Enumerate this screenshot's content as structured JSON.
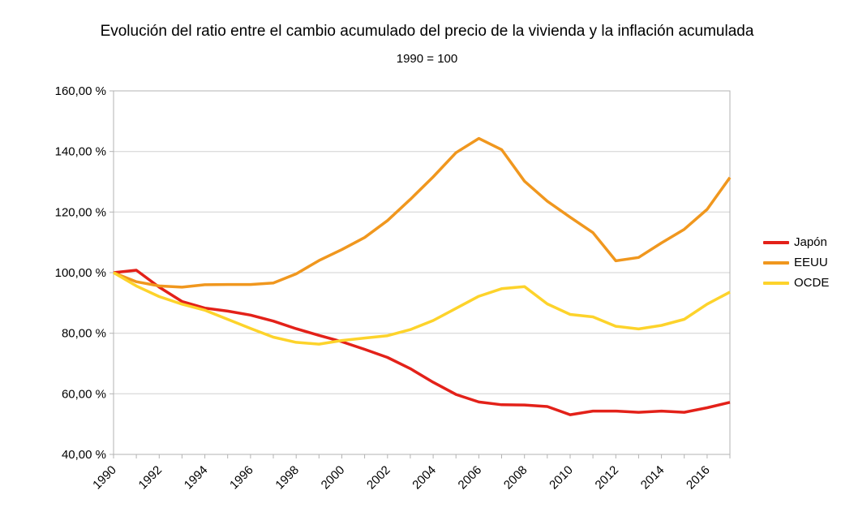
{
  "chart_data": {
    "type": "line",
    "title": "Evolución del ratio entre el cambio acumulado del precio de la vivienda y la inflación acumulada",
    "subtitle": "1990 = 100",
    "x": [
      1990,
      1991,
      1992,
      1993,
      1994,
      1995,
      1996,
      1997,
      1998,
      1999,
      2000,
      2001,
      2002,
      2003,
      2004,
      2005,
      2006,
      2007,
      2008,
      2009,
      2010,
      2011,
      2012,
      2013,
      2014,
      2015,
      2016,
      2017
    ],
    "x_tick_labels": [
      "1990",
      "1992",
      "1994",
      "1996",
      "1998",
      "2000",
      "2002",
      "2004",
      "2006",
      "2008",
      "2010",
      "2012",
      "2014",
      "2016"
    ],
    "y_ticks": [
      160,
      140,
      120,
      100,
      80,
      60,
      40
    ],
    "y_tick_labels": [
      "160,00 %",
      "140,00 %",
      "120,00 %",
      "100,00 %",
      "80,00 %",
      "60,00 %",
      "40,00 %"
    ],
    "ylim": [
      40,
      160
    ],
    "grid": true,
    "legend_position": "right",
    "axis_color": "#b3b3b3",
    "grid_color": "#d0d0d0",
    "text_color": "#000000",
    "series": [
      {
        "name": "Japón",
        "color": "#e32119",
        "values": [
          100,
          100.8,
          95.2,
          90.5,
          88.3,
          87.3,
          86.0,
          84.0,
          81.5,
          79.3,
          77.2,
          74.7,
          72.0,
          68.3,
          63.8,
          59.8,
          57.3,
          56.4,
          56.3,
          55.8,
          53.1,
          54.3,
          54.3,
          53.9,
          54.3,
          53.9,
          55.4,
          57.2
        ]
      },
      {
        "name": "EEUU",
        "color": "#f0971e",
        "values": [
          100,
          97.0,
          95.6,
          95.2,
          96.0,
          96.1,
          96.1,
          96.6,
          99.6,
          104.0,
          107.6,
          111.6,
          117.2,
          124.2,
          131.6,
          139.6,
          144.3,
          140.6,
          130.2,
          123.6,
          118.3,
          113.2,
          103.9,
          105.0,
          109.8,
          114.3,
          120.9,
          131.4
        ]
      },
      {
        "name": "OCDE",
        "color": "#fdd32b",
        "values": [
          100,
          95.6,
          92.1,
          89.6,
          87.6,
          84.6,
          81.6,
          78.7,
          77.0,
          76.4,
          77.6,
          78.4,
          79.2,
          81.2,
          84.2,
          88.2,
          92.2,
          94.7,
          95.4,
          89.7,
          86.2,
          85.4,
          82.3,
          81.4,
          82.6,
          84.6,
          89.6,
          93.6
        ]
      }
    ]
  }
}
